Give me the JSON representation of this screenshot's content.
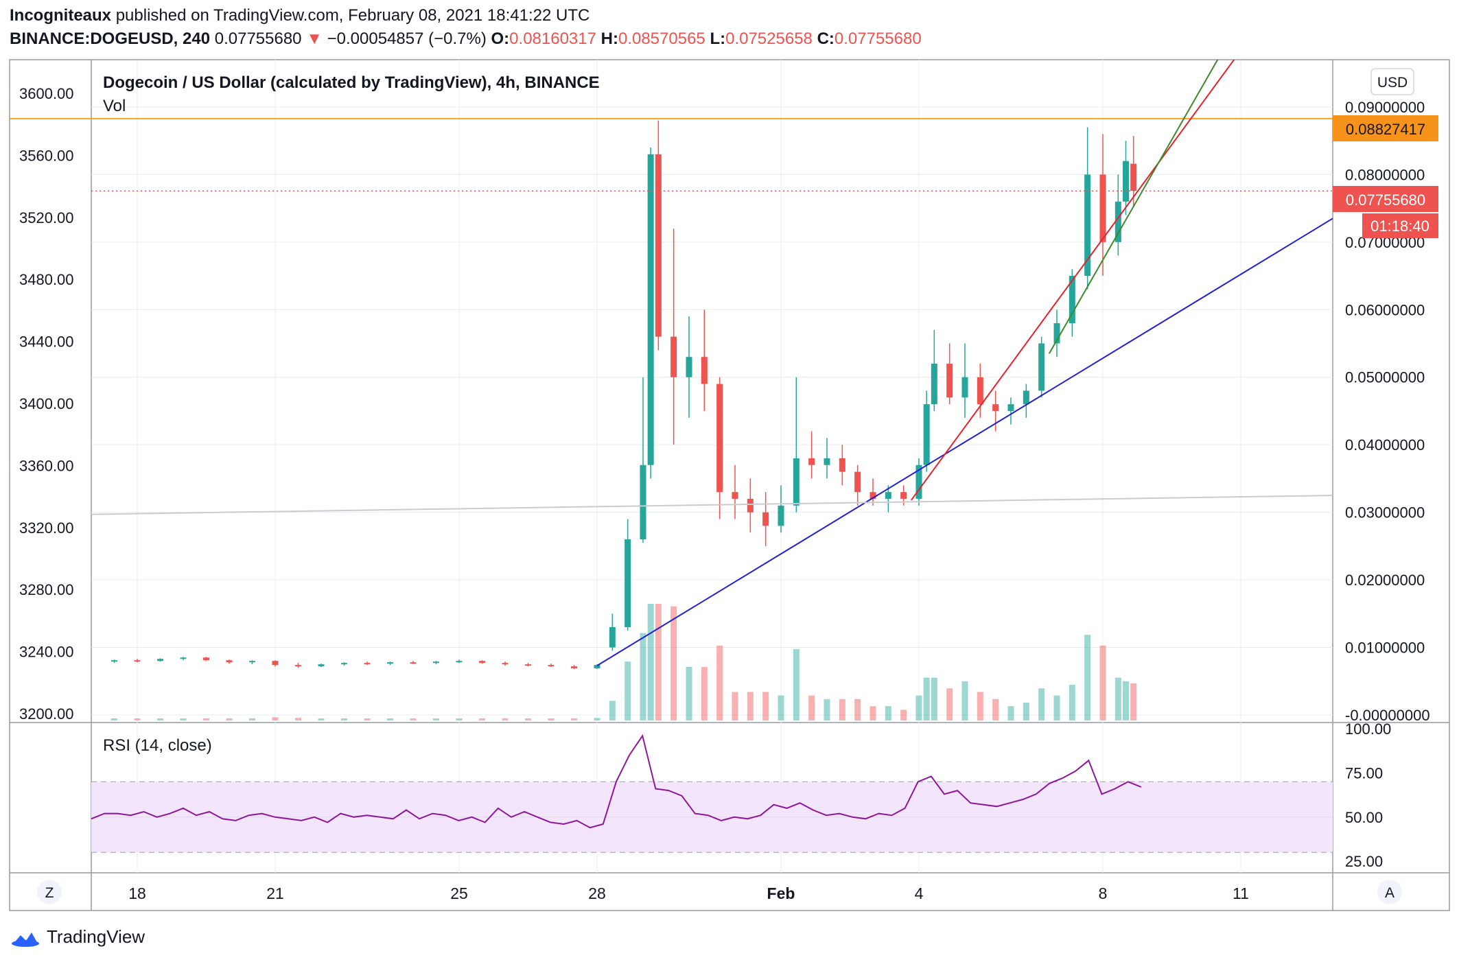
{
  "header": {
    "publisher": "Incogniteaux",
    "published_text": "published on TradingView.com, February 08, 2021 18:41:22 UTC",
    "symbol": "BINANCE:DOGEUSD, 240",
    "last": "0.07755680",
    "arrow": "▼",
    "change": "−0.00054857 (−0.7%)",
    "o_label": "O:",
    "o_value": "0.08160317",
    "h_label": "H:",
    "h_value": "0.08570565",
    "l_label": "L:",
    "l_value": "0.07525658",
    "c_label": "C:",
    "c_value": "0.07755680"
  },
  "legend": {
    "title": "Dogecoin / US Dollar (calculated by TradingView), 4h, BINANCE",
    "vol": "Vol",
    "rsi": "RSI (14, close)"
  },
  "currency_button": "USD",
  "price_labels": {
    "orange": "0.08827417",
    "last": "0.07755680",
    "countdown": "01:18:40"
  },
  "left_axis_ticks": [
    "3600.00",
    "3560.00",
    "3520.00",
    "3480.00",
    "3440.00",
    "3400.00",
    "3360.00",
    "3320.00",
    "3280.00",
    "3240.00",
    "3200.00"
  ],
  "right_axis_ticks": [
    "0.09000000",
    "0.08000000",
    "0.07000000",
    "0.06000000",
    "0.05000000",
    "0.04000000",
    "0.03000000",
    "0.02000000",
    "0.01000000",
    "-0.00000000"
  ],
  "rsi_ticks": [
    "100.00",
    "75.00",
    "50.00",
    "25.00"
  ],
  "x_ticks": [
    "18",
    "21",
    "25",
    "28",
    "Feb",
    "4",
    "8",
    "11"
  ],
  "corner_buttons": {
    "left": "Z",
    "right": "A"
  },
  "brand": "TradingView",
  "colors": {
    "up": "#26a69a",
    "down": "#ef5350",
    "orange": "#f7a21b",
    "blue_trend": "#1f1fd6",
    "red_trend": "#e8202a",
    "green_trend": "#3a8a2a",
    "rsi": "#8e1599",
    "rsi_band": "#f3e5fb"
  },
  "chart_data": {
    "type": "candlestick",
    "symbol": "DOGEUSD",
    "interval": "4h",
    "x_range": [
      "2021-01-17",
      "2021-02-13"
    ],
    "y_range_price": [
      0.0,
      0.097
    ],
    "overlay_lines": [
      {
        "label": "horizontal resistance",
        "value": 0.08827417,
        "color": "orange"
      },
      {
        "label": "last price",
        "value": 0.0775568,
        "color": "red dotted"
      }
    ],
    "trendlines": [
      {
        "color": "blue",
        "from": [
          "2021-01-28 00:00",
          0.0073
        ],
        "to": [
          "2021-02-13 00:00",
          0.0735
        ]
      },
      {
        "color": "red",
        "from": [
          "2021-02-03 20:00",
          0.0318
        ],
        "to": [
          "2021-02-11 12:00",
          0.103
        ]
      },
      {
        "color": "green",
        "from": [
          "2021-02-06 20:00",
          0.0535
        ],
        "to": [
          "2021-02-10 20:00",
          0.101
        ]
      },
      {
        "color": "lightgrey",
        "from": [
          "2021-01-17 00:00",
          0.0297
        ],
        "to": [
          "2021-02-13 00:00",
          0.0325
        ]
      }
    ],
    "candles_note": "approximate 4h OHLC read from the chart, sampled",
    "candles": [
      [
        "2021-01-17 12:00",
        0.0079,
        0.0082,
        0.0077,
        0.0081
      ],
      [
        "2021-01-18 00:00",
        0.0081,
        0.0083,
        0.0078,
        0.008
      ],
      [
        "2021-01-18 12:00",
        0.008,
        0.0084,
        0.0079,
        0.0083
      ],
      [
        "2021-01-19 00:00",
        0.0083,
        0.0086,
        0.0081,
        0.0085
      ],
      [
        "2021-01-19 12:00",
        0.0085,
        0.0086,
        0.008,
        0.0081
      ],
      [
        "2021-01-20 00:00",
        0.0081,
        0.0082,
        0.0076,
        0.0078
      ],
      [
        "2021-01-20 12:00",
        0.0078,
        0.0081,
        0.0075,
        0.008
      ],
      [
        "2021-01-21 00:00",
        0.008,
        0.0081,
        0.0072,
        0.0074
      ],
      [
        "2021-01-21 12:00",
        0.0074,
        0.0077,
        0.007,
        0.0072
      ],
      [
        "2021-01-22 00:00",
        0.0072,
        0.0076,
        0.0071,
        0.0075
      ],
      [
        "2021-01-22 12:00",
        0.0075,
        0.0078,
        0.0073,
        0.0077
      ],
      [
        "2021-01-23 00:00",
        0.0077,
        0.0079,
        0.0074,
        0.0076
      ],
      [
        "2021-01-23 12:00",
        0.0076,
        0.0079,
        0.0074,
        0.0078
      ],
      [
        "2021-01-24 00:00",
        0.0078,
        0.008,
        0.0076,
        0.0077
      ],
      [
        "2021-01-24 12:00",
        0.0077,
        0.008,
        0.0075,
        0.0079
      ],
      [
        "2021-01-25 00:00",
        0.0079,
        0.0082,
        0.0077,
        0.008
      ],
      [
        "2021-01-25 12:00",
        0.008,
        0.0081,
        0.0076,
        0.0077
      ],
      [
        "2021-01-26 00:00",
        0.0077,
        0.0079,
        0.0073,
        0.0075
      ],
      [
        "2021-01-26 12:00",
        0.0075,
        0.0077,
        0.0072,
        0.0074
      ],
      [
        "2021-01-27 00:00",
        0.0074,
        0.0076,
        0.0071,
        0.0072
      ],
      [
        "2021-01-27 12:00",
        0.0072,
        0.0074,
        0.0068,
        0.0069
      ],
      [
        "2021-01-28 00:00",
        0.0069,
        0.0075,
        0.0068,
        0.0074
      ],
      [
        "2021-01-28 08:00",
        0.01,
        0.015,
        0.0095,
        0.013
      ],
      [
        "2021-01-28 16:00",
        0.013,
        0.029,
        0.0125,
        0.026
      ],
      [
        "2021-01-29 00:00",
        0.026,
        0.05,
        0.0255,
        0.037
      ],
      [
        "2021-01-29 04:00",
        0.037,
        0.084,
        0.035,
        0.083
      ],
      [
        "2021-01-29 08:00",
        0.083,
        0.088,
        0.054,
        0.056
      ],
      [
        "2021-01-29 16:00",
        0.056,
        0.072,
        0.04,
        0.05
      ],
      [
        "2021-01-30 00:00",
        0.05,
        0.059,
        0.044,
        0.053
      ],
      [
        "2021-01-30 08:00",
        0.053,
        0.06,
        0.045,
        0.049
      ],
      [
        "2021-01-30 16:00",
        0.049,
        0.05,
        0.029,
        0.033
      ],
      [
        "2021-01-31 00:00",
        0.033,
        0.037,
        0.029,
        0.032
      ],
      [
        "2021-01-31 08:00",
        0.032,
        0.035,
        0.027,
        0.03
      ],
      [
        "2021-01-31 16:00",
        0.03,
        0.033,
        0.025,
        0.028
      ],
      [
        "2021-02-01 00:00",
        0.028,
        0.034,
        0.027,
        0.031
      ],
      [
        "2021-02-01 08:00",
        0.031,
        0.05,
        0.03,
        0.038
      ],
      [
        "2021-02-01 16:00",
        0.038,
        0.042,
        0.035,
        0.037
      ],
      [
        "2021-02-02 00:00",
        0.037,
        0.041,
        0.035,
        0.038
      ],
      [
        "2021-02-02 08:00",
        0.038,
        0.04,
        0.034,
        0.036
      ],
      [
        "2021-02-02 16:00",
        0.036,
        0.037,
        0.031,
        0.033
      ],
      [
        "2021-02-03 00:00",
        0.033,
        0.035,
        0.031,
        0.032
      ],
      [
        "2021-02-03 08:00",
        0.032,
        0.034,
        0.03,
        0.033
      ],
      [
        "2021-02-03 16:00",
        0.033,
        0.034,
        0.031,
        0.032
      ],
      [
        "2021-02-04 00:00",
        0.032,
        0.038,
        0.031,
        0.037
      ],
      [
        "2021-02-04 04:00",
        0.037,
        0.048,
        0.036,
        0.046
      ],
      [
        "2021-02-04 08:00",
        0.046,
        0.057,
        0.045,
        0.052
      ],
      [
        "2021-02-04 16:00",
        0.052,
        0.055,
        0.046,
        0.047
      ],
      [
        "2021-02-05 00:00",
        0.047,
        0.055,
        0.044,
        0.05
      ],
      [
        "2021-02-05 08:00",
        0.05,
        0.052,
        0.044,
        0.046
      ],
      [
        "2021-02-05 16:00",
        0.046,
        0.048,
        0.042,
        0.045
      ],
      [
        "2021-02-06 00:00",
        0.045,
        0.047,
        0.043,
        0.046
      ],
      [
        "2021-02-06 08:00",
        0.046,
        0.049,
        0.044,
        0.048
      ],
      [
        "2021-02-06 16:00",
        0.048,
        0.056,
        0.047,
        0.055
      ],
      [
        "2021-02-07 00:00",
        0.055,
        0.06,
        0.053,
        0.058
      ],
      [
        "2021-02-07 08:00",
        0.058,
        0.066,
        0.056,
        0.065
      ],
      [
        "2021-02-07 16:00",
        0.065,
        0.087,
        0.063,
        0.08
      ],
      [
        "2021-02-08 00:00",
        0.08,
        0.086,
        0.065,
        0.07
      ],
      [
        "2021-02-08 08:00",
        0.07,
        0.08,
        0.068,
        0.076
      ],
      [
        "2021-02-08 12:00",
        0.076,
        0.085,
        0.074,
        0.082
      ],
      [
        "2021-02-08 16:00",
        0.0816,
        0.0857,
        0.0753,
        0.0776
      ]
    ],
    "rsi": {
      "title": "RSI (14, close)",
      "y_range": [
        20,
        100
      ],
      "bands": [
        30,
        70
      ],
      "values_note": "approximate, sampled",
      "values": [
        49,
        52,
        52,
        51,
        53,
        50,
        52,
        55,
        51,
        53,
        49,
        48,
        51,
        52,
        50,
        49,
        48,
        50,
        47,
        52,
        50,
        51,
        50,
        49,
        54,
        49,
        52,
        51,
        48,
        50,
        47,
        55,
        50,
        53,
        50,
        47,
        46,
        48,
        44,
        46,
        70,
        85,
        96,
        66,
        65,
        62,
        52,
        51,
        48,
        50,
        49,
        51,
        57,
        55,
        58,
        54,
        51,
        52,
        50,
        49,
        52,
        51,
        55,
        70,
        73,
        63,
        65,
        58,
        57,
        56,
        58,
        60,
        63,
        69,
        72,
        76,
        82,
        63,
        66,
        70,
        67
      ]
    }
  }
}
